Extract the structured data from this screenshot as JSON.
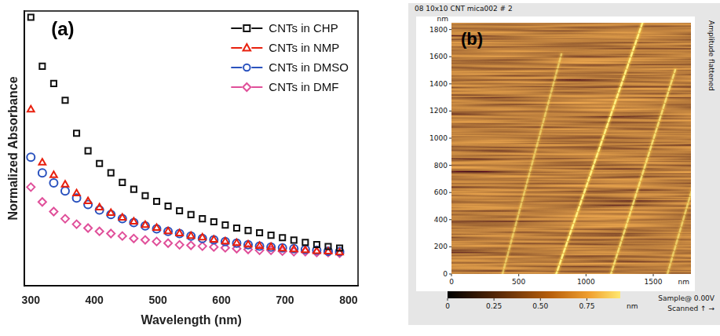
{
  "chart_data": {
    "type": "scatter",
    "panel_label": "(a)",
    "x_label": "Wavelength (nm)",
    "y_label": "Normalized Absorbance",
    "x": [
      300,
      318,
      336,
      354,
      372,
      390,
      408,
      426,
      444,
      462,
      480,
      498,
      516,
      534,
      552,
      570,
      588,
      606,
      624,
      642,
      660,
      678,
      696,
      714,
      732,
      750,
      768,
      786
    ],
    "series": [
      {
        "name": "CNTs in CHP",
        "color": "#111111",
        "marker": "square",
        "values": [
          0.977,
          0.799,
          0.736,
          0.675,
          0.555,
          0.491,
          0.445,
          0.411,
          0.376,
          0.351,
          0.328,
          0.307,
          0.29,
          0.273,
          0.259,
          0.244,
          0.233,
          0.221,
          0.21,
          0.201,
          0.193,
          0.184,
          0.175,
          0.166,
          0.158,
          0.15,
          0.143,
          0.137
        ]
      },
      {
        "name": "CNTs in NMP",
        "color": "#e8200e",
        "marker": "triangle",
        "values": [
          0.641,
          0.448,
          0.402,
          0.368,
          0.336,
          0.307,
          0.284,
          0.264,
          0.247,
          0.233,
          0.221,
          0.21,
          0.198,
          0.19,
          0.181,
          0.175,
          0.167,
          0.161,
          0.155,
          0.149,
          0.144,
          0.141,
          0.135,
          0.132,
          0.129,
          0.126,
          0.124,
          0.121
        ]
      },
      {
        "name": "CNTs in DMSO",
        "color": "#2a52be",
        "marker": "circle",
        "values": [
          0.468,
          0.411,
          0.374,
          0.345,
          0.319,
          0.296,
          0.276,
          0.259,
          0.244,
          0.23,
          0.218,
          0.207,
          0.198,
          0.19,
          0.181,
          0.172,
          0.167,
          0.161,
          0.155,
          0.149,
          0.144,
          0.141,
          0.138,
          0.135,
          0.132,
          0.129,
          0.126,
          0.124
        ]
      },
      {
        "name": "CNTs in DMF",
        "color": "#e0509a",
        "marker": "diamond",
        "values": [
          0.359,
          0.305,
          0.27,
          0.244,
          0.224,
          0.21,
          0.198,
          0.19,
          0.181,
          0.172,
          0.167,
          0.161,
          0.155,
          0.149,
          0.147,
          0.144,
          0.141,
          0.138,
          0.135,
          0.132,
          0.129,
          0.129,
          0.126,
          0.124,
          0.124,
          0.121,
          0.121,
          0.118
        ]
      }
    ],
    "xlim": [
      290,
      815
    ],
    "xticks": [
      300,
      400,
      500,
      600,
      700,
      800
    ],
    "ylim": [
      0,
      1
    ],
    "tick_labels": "x",
    "grid": false,
    "legend": "upper right"
  },
  "afm_image": {
    "panel_label": "(b)",
    "title": "08 10x10 CNT mica002 # 2",
    "side_label": "Amplitude flattened",
    "x_axis": {
      "unit": "nm",
      "xlim": [
        0,
        1780
      ],
      "xticks": [
        0,
        500,
        1000,
        1500
      ]
    },
    "y_axis": {
      "unit": "nm",
      "ylim": [
        0,
        1850
      ],
      "yticks": [
        0,
        200,
        400,
        600,
        800,
        1000,
        1200,
        1400,
        1600,
        1800
      ]
    },
    "color_bar": {
      "unit": "nm",
      "range": [
        0,
        0.93
      ],
      "ticks": [
        0,
        0.25,
        {
          "value": 0.5,
          "label": "0.50"
        },
        0.75
      ]
    },
    "footer": [
      "Sample@ 0.00V",
      "Scanned ↑ →"
    ]
  }
}
